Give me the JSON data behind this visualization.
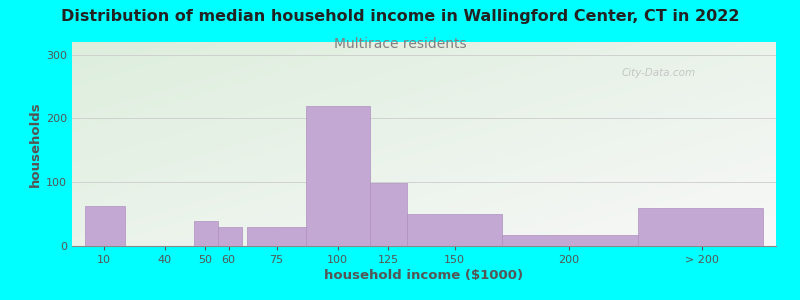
{
  "title": "Distribution of median household income in Wallingford Center, CT in 2022",
  "subtitle": "Multirace residents",
  "xlabel": "household income ($1000)",
  "ylabel": "households",
  "background_color": "#00FFFF",
  "plot_bg_color_topleft": "#ddeedd",
  "plot_bg_color_bottomright": "#f8f8f8",
  "bar_color": "#c4a8d4",
  "bar_edge_color": "#b090c0",
  "title_fontsize": 11.5,
  "title_color": "#222222",
  "subtitle_fontsize": 10,
  "subtitle_color": "#808080",
  "watermark": "City-Data.com",
  "xlabel_fontsize": 9.5,
  "ylabel_fontsize": 9.5,
  "label_color": "#555555",
  "values": [
    63,
    0,
    40,
    30,
    30,
    220,
    99,
    50,
    18,
    60
  ],
  "bar_lefts": [
    5,
    25,
    46,
    55,
    66,
    88,
    112,
    126,
    162,
    213
  ],
  "bar_rights": [
    20,
    46,
    55,
    64,
    88,
    112,
    126,
    162,
    213,
    260
  ],
  "ylim": [
    0,
    320
  ],
  "yticks": [
    0,
    100,
    200,
    300
  ],
  "xtick_labels": [
    "10",
    "40",
    "50",
    "60",
    "75",
    "100",
    "125",
    "150",
    "200",
    "> 200"
  ],
  "xtick_positions": [
    12,
    35,
    50,
    59,
    77,
    100,
    119,
    144,
    187,
    237
  ],
  "xlim": [
    0,
    265
  ]
}
